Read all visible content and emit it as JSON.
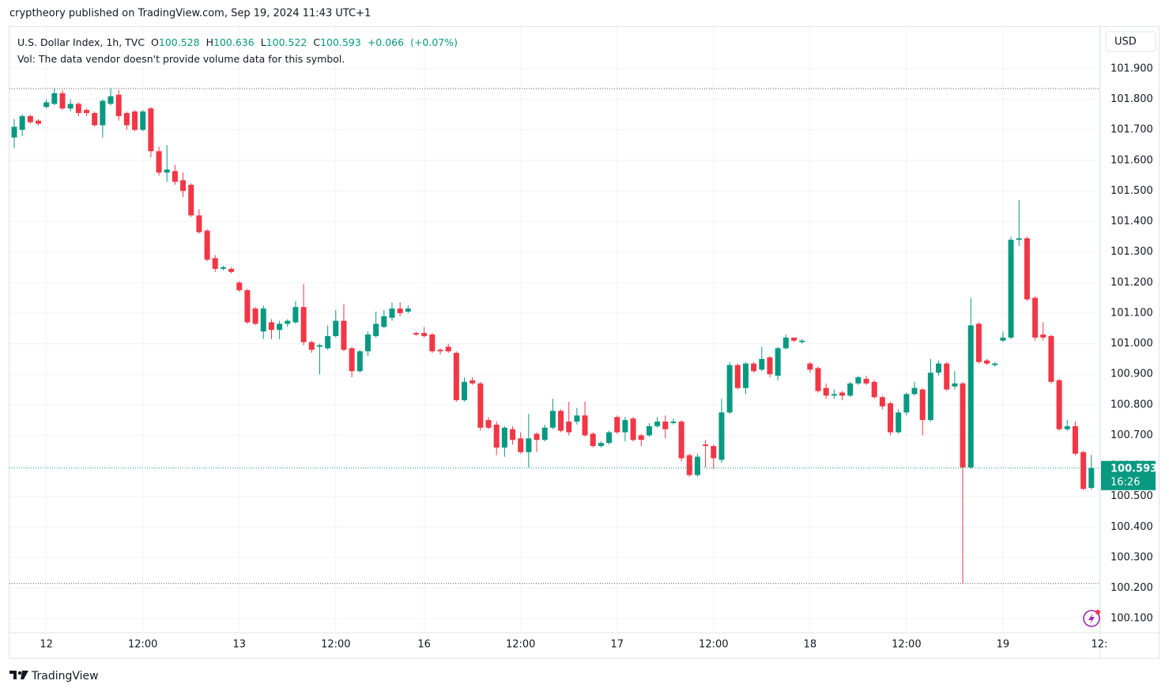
{
  "header": {
    "publisher": "cryptheory published on TradingView.com, Sep 19, 2024 11:43 UTC+1"
  },
  "footer": {
    "brand": "TradingView"
  },
  "chart_data": {
    "type": "candlestick",
    "legend": {
      "symbol": "U.S. Dollar Index, 1h, TVC",
      "fields": [
        {
          "key": "O",
          "value": 100.528
        },
        {
          "key": "H",
          "value": 100.636
        },
        {
          "key": "L",
          "value": 100.522
        },
        {
          "key": "C",
          "value": 100.593
        }
      ],
      "change": {
        "value": 0.066,
        "label": "+0.066"
      },
      "change_pct": {
        "value": 0.07,
        "label": "(+0.07%)"
      },
      "volume_note": "Vol: The data vendor doesn't provide volume data for this symbol."
    },
    "currency": "USD",
    "last_price": {
      "value": 100.593,
      "label": "100.593"
    },
    "countdown": "16:26",
    "up_color": "#089981",
    "down_color": "#f23645",
    "grid": true,
    "ylim": [
      100.054,
      102.037
    ],
    "yticks": [
      {
        "value": 100.1,
        "label": "100.100"
      },
      {
        "value": 100.2,
        "label": "100.200"
      },
      {
        "value": 100.3,
        "label": "100.300"
      },
      {
        "value": 100.4,
        "label": "100.400"
      },
      {
        "value": 100.5,
        "label": "100.500"
      },
      {
        "value": 100.6,
        "label": "100.600"
      },
      {
        "value": 100.7,
        "label": "100.700"
      },
      {
        "value": 100.8,
        "label": "100.800"
      },
      {
        "value": 100.9,
        "label": "100.900"
      },
      {
        "value": 101.0,
        "label": "101.000"
      },
      {
        "value": 101.1,
        "label": "101.100"
      },
      {
        "value": 101.2,
        "label": "101.200"
      },
      {
        "value": 101.3,
        "label": "101.300"
      },
      {
        "value": 101.4,
        "label": "101.400"
      },
      {
        "value": 101.5,
        "label": "101.500"
      },
      {
        "value": 101.6,
        "label": "101.600"
      },
      {
        "value": 101.7,
        "label": "101.700"
      },
      {
        "value": 101.8,
        "label": "101.800"
      },
      {
        "value": 101.9,
        "label": "101.900"
      }
    ],
    "categories": [
      null,
      null,
      null,
      null,
      "12",
      null,
      null,
      null,
      null,
      null,
      null,
      null,
      null,
      null,
      null,
      null,
      "12:00",
      null,
      null,
      null,
      null,
      null,
      null,
      null,
      null,
      null,
      null,
      null,
      "13",
      null,
      null,
      null,
      null,
      null,
      null,
      null,
      null,
      null,
      null,
      null,
      "12:00",
      null,
      null,
      null,
      null,
      null,
      null,
      null,
      null,
      null,
      null,
      "16",
      null,
      null,
      null,
      null,
      null,
      null,
      null,
      null,
      null,
      null,
      null,
      "12:00",
      null,
      null,
      null,
      null,
      null,
      null,
      null,
      null,
      null,
      null,
      null,
      "17",
      null,
      null,
      null,
      null,
      null,
      null,
      null,
      null,
      null,
      null,
      null,
      "12:00",
      null,
      null,
      null,
      null,
      null,
      null,
      null,
      null,
      null,
      null,
      null,
      "18",
      null,
      null,
      null,
      null,
      null,
      null,
      null,
      null,
      null,
      null,
      null,
      "12:00",
      null,
      null,
      null,
      null,
      null,
      null,
      null,
      null,
      null,
      null,
      null,
      "19",
      null,
      null,
      null,
      null,
      null,
      null,
      null,
      null,
      null,
      null,
      null,
      "12:"
    ],
    "candles": {
      "open": [
        101.675,
        101.7,
        101.745,
        101.73,
        101.775,
        101.785,
        101.82,
        101.77,
        101.785,
        101.765,
        101.755,
        101.715,
        101.785,
        101.815,
        101.755,
        101.76,
        101.7,
        101.77,
        101.63,
        101.56,
        101.565,
        101.535,
        101.52,
        101.42,
        101.37,
        101.28,
        101.245,
        101.245,
        101.2,
        101.175,
        101.115,
        101.04,
        101.07,
        101.045,
        101.065,
        101.07,
        101.12,
        101.005,
        100.99,
        100.985,
        101.025,
        101.075,
        100.985,
        100.91,
        100.975,
        101.025,
        101.055,
        101.085,
        101.115,
        101.105,
        101.035,
        101.035,
        101.03,
        100.98,
        100.99,
        100.97,
        100.815,
        100.88,
        100.87,
        100.75,
        100.735,
        100.66,
        100.72,
        100.69,
        100.645,
        100.705,
        100.685,
        100.725,
        100.78,
        100.745,
        100.745,
        100.765,
        100.705,
        100.665,
        100.675,
        100.76,
        100.71,
        100.755,
        100.7,
        100.7,
        100.73,
        100.745,
        100.74,
        100.745,
        100.635,
        100.57,
        100.67,
        100.665,
        100.62,
        100.775,
        100.93,
        100.855,
        100.935,
        100.915,
        100.955,
        100.895,
        100.985,
        101.02,
        101.005,
        100.935,
        100.92,
        100.855,
        100.83,
        100.84,
        100.83,
        100.87,
        100.885,
        100.875,
        100.825,
        100.805,
        100.71,
        100.775,
        100.835,
        100.85,
        100.75,
        100.905,
        100.935,
        100.86,
        100.87,
        100.595,
        101.065,
        100.945,
        100.93,
        101.01,
        101.02,
        101.34,
        101.345,
        101.15,
        101.03,
        101.025,
        100.88,
        100.72,
        100.73,
        100.645,
        100.528,
        null
      ],
      "high": [
        101.735,
        101.75,
        101.75,
        101.735,
        101.8,
        101.835,
        101.83,
        101.8,
        101.79,
        101.77,
        101.76,
        101.8,
        101.835,
        101.83,
        101.76,
        101.765,
        101.765,
        101.775,
        101.645,
        101.65,
        101.585,
        101.56,
        101.525,
        101.44,
        101.375,
        101.29,
        101.255,
        101.25,
        101.205,
        101.18,
        101.12,
        101.125,
        101.08,
        101.075,
        101.08,
        101.14,
        101.195,
        101.01,
        101.0,
        101.06,
        101.11,
        101.13,
        100.99,
        100.98,
        101.04,
        101.105,
        101.11,
        101.135,
        101.135,
        101.125,
        101.04,
        101.055,
        101.035,
        100.985,
        101.0,
        100.975,
        100.89,
        100.89,
        100.875,
        100.76,
        100.745,
        100.73,
        100.73,
        100.71,
        100.77,
        100.71,
        100.735,
        100.82,
        100.785,
        100.81,
        100.79,
        100.81,
        100.71,
        100.68,
        100.715,
        100.765,
        100.76,
        100.76,
        100.705,
        100.74,
        100.76,
        100.765,
        100.755,
        100.75,
        100.64,
        100.64,
        100.685,
        100.67,
        100.82,
        100.94,
        100.935,
        100.94,
        100.94,
        100.99,
        100.96,
        100.99,
        101.03,
        101.02,
        101.015,
        100.94,
        100.925,
        100.87,
        100.85,
        100.845,
        100.875,
        100.895,
        100.895,
        100.88,
        100.83,
        100.81,
        100.785,
        100.84,
        100.875,
        100.855,
        100.95,
        100.945,
        100.94,
        100.91,
        100.875,
        101.15,
        101.07,
        100.95,
        100.94,
        101.04,
        101.35,
        101.47,
        101.35,
        101.155,
        101.07,
        101.03,
        100.885,
        100.75,
        100.745,
        100.65,
        100.636,
        null
      ],
      "low": [
        101.64,
        101.68,
        101.72,
        101.715,
        101.77,
        101.78,
        101.765,
        101.76,
        101.745,
        101.745,
        101.71,
        101.675,
        101.78,
        101.73,
        101.7,
        101.695,
        101.695,
        101.61,
        101.55,
        101.53,
        101.52,
        101.48,
        101.415,
        101.36,
        101.27,
        101.235,
        101.24,
        101.23,
        101.17,
        101.065,
        101.06,
        101.015,
        101.015,
        101.015,
        101.055,
        101.065,
        100.995,
        100.97,
        100.9,
        100.98,
        101.02,
        100.975,
        100.89,
        100.905,
        100.96,
        101.02,
        101.05,
        101.075,
        101.09,
        101.1,
        101.025,
        101.02,
        100.97,
        100.965,
        100.97,
        100.81,
        100.81,
        100.865,
        100.715,
        100.72,
        100.635,
        100.63,
        100.67,
        100.64,
        100.595,
        100.645,
        100.68,
        100.72,
        100.71,
        100.7,
        100.735,
        100.695,
        100.66,
        100.66,
        100.67,
        100.705,
        100.68,
        100.68,
        100.665,
        100.695,
        100.725,
        100.69,
        100.735,
        100.615,
        100.565,
        100.565,
        100.595,
        100.59,
        100.61,
        100.77,
        100.85,
        100.835,
        100.905,
        100.91,
        100.89,
        100.88,
        100.98,
        101.005,
        101.0,
        100.905,
        100.84,
        100.82,
        100.82,
        100.815,
        100.825,
        100.865,
        100.865,
        100.82,
        100.785,
        100.7,
        100.705,
        100.765,
        100.83,
        100.7,
        100.745,
        100.895,
        100.845,
        100.85,
        100.215,
        100.59,
        100.935,
        100.93,
        100.925,
        101.005,
        101.015,
        101.32,
        101.14,
        101.01,
        101.01,
        100.87,
        100.715,
        100.715,
        100.635,
        100.52,
        100.522,
        null
      ],
      "close": [
        101.71,
        101.745,
        101.725,
        101.72,
        101.79,
        101.82,
        101.77,
        101.785,
        101.755,
        101.755,
        101.715,
        101.795,
        101.81,
        101.745,
        101.715,
        101.7,
        101.76,
        101.63,
        101.56,
        101.57,
        101.53,
        101.5,
        101.42,
        101.365,
        101.275,
        101.245,
        101.25,
        101.235,
        101.175,
        101.07,
        101.065,
        101.115,
        101.045,
        101.065,
        101.075,
        101.12,
        101.005,
        100.98,
        100.995,
        101.025,
        101.075,
        100.98,
        100.91,
        100.975,
        101.03,
        101.065,
        101.09,
        101.115,
        101.1,
        101.115,
        101.03,
        101.025,
        100.975,
        100.975,
        100.975,
        100.815,
        100.875,
        100.87,
        100.725,
        100.725,
        100.66,
        100.725,
        100.685,
        100.645,
        100.69,
        100.685,
        100.725,
        100.78,
        100.715,
        100.71,
        100.765,
        100.7,
        100.665,
        100.675,
        100.71,
        100.71,
        100.75,
        100.685,
        100.685,
        100.73,
        100.745,
        100.72,
        100.745,
        100.625,
        100.57,
        100.63,
        100.665,
        100.625,
        100.775,
        100.93,
        100.855,
        100.935,
        100.91,
        100.95,
        100.9,
        100.985,
        101.02,
        101.01,
        101.01,
        100.915,
        100.845,
        100.83,
        100.835,
        100.83,
        100.87,
        100.89,
        100.87,
        100.825,
        100.795,
        100.71,
        100.775,
        100.835,
        100.855,
        100.75,
        100.905,
        100.935,
        100.85,
        100.87,
        100.595,
        101.06,
        100.94,
        100.935,
        100.935,
        101.02,
        101.34,
        101.345,
        101.145,
        101.02,
        101.02,
        100.875,
        100.72,
        100.73,
        100.64,
        100.525,
        100.593,
        null
      ]
    }
  }
}
